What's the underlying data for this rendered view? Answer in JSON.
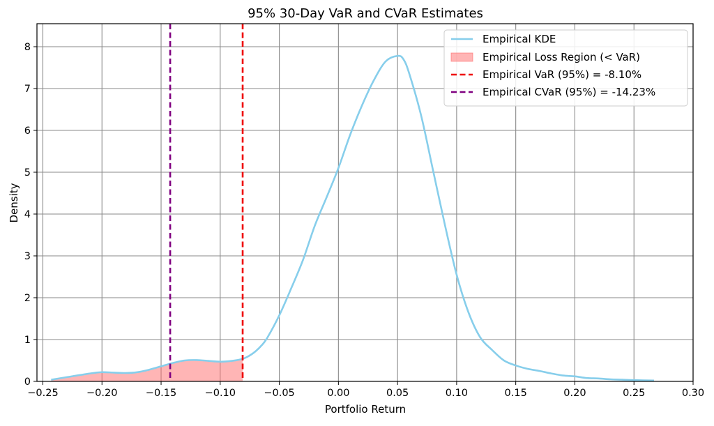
{
  "chart_data": {
    "type": "line",
    "title": "95% 30-Day VaR and CVaR Estimates",
    "xlabel": "Portfolio Return",
    "ylabel": "Density",
    "xlim": [
      -0.255,
      0.3
    ],
    "ylim": [
      0,
      8.55
    ],
    "grid": true,
    "legend_position": "top-right",
    "x_ticks": [
      -0.25,
      -0.2,
      -0.15,
      -0.1,
      -0.05,
      0.0,
      0.05,
      0.1,
      0.15,
      0.2,
      0.25,
      0.3
    ],
    "x_tick_labels": [
      "−0.25",
      "−0.20",
      "−0.15",
      "−0.10",
      "−0.05",
      "0.00",
      "0.05",
      "0.10",
      "0.15",
      "0.20",
      "0.25",
      "0.30"
    ],
    "y_ticks": [
      0,
      1,
      2,
      3,
      4,
      5,
      6,
      7,
      8
    ],
    "y_tick_labels": [
      "0",
      "1",
      "2",
      "3",
      "4",
      "5",
      "6",
      "7",
      "8"
    ],
    "series": [
      {
        "name": "Empirical KDE",
        "color": "#87ceeb",
        "x": [
          -0.243,
          -0.23,
          -0.21,
          -0.2,
          -0.19,
          -0.18,
          -0.17,
          -0.16,
          -0.15,
          -0.14,
          -0.13,
          -0.12,
          -0.11,
          -0.1,
          -0.09,
          -0.081,
          -0.075,
          -0.07,
          -0.065,
          -0.06,
          -0.05,
          -0.04,
          -0.03,
          -0.02,
          -0.01,
          0.0,
          0.01,
          0.02,
          0.03,
          0.04,
          0.05,
          0.055,
          0.06,
          0.07,
          0.08,
          0.09,
          0.1,
          0.11,
          0.12,
          0.13,
          0.14,
          0.15,
          0.16,
          0.17,
          0.18,
          0.19,
          0.2,
          0.21,
          0.22,
          0.23,
          0.24,
          0.25,
          0.267
        ],
        "y": [
          0.04,
          0.1,
          0.19,
          0.22,
          0.21,
          0.2,
          0.22,
          0.28,
          0.36,
          0.44,
          0.5,
          0.51,
          0.49,
          0.47,
          0.49,
          0.54,
          0.62,
          0.72,
          0.86,
          1.05,
          1.58,
          2.22,
          2.9,
          3.72,
          4.4,
          5.1,
          5.9,
          6.6,
          7.2,
          7.65,
          7.78,
          7.7,
          7.35,
          6.35,
          5.05,
          3.75,
          2.55,
          1.65,
          1.05,
          0.75,
          0.5,
          0.38,
          0.3,
          0.25,
          0.19,
          0.14,
          0.12,
          0.08,
          0.07,
          0.05,
          0.04,
          0.03,
          0.02
        ]
      },
      {
        "name": "Empirical Loss Region (< VaR)",
        "type": "area",
        "color": "#ff6b6b",
        "x_max": -0.081
      },
      {
        "name": "Empirical VaR (95%) = -8.10%",
        "type": "vline",
        "x": -0.081,
        "color": "#ee0000"
      },
      {
        "name": "Empirical CVaR (95%) = -14.23%",
        "type": "vline",
        "x": -0.1423,
        "color": "#800080"
      }
    ]
  }
}
